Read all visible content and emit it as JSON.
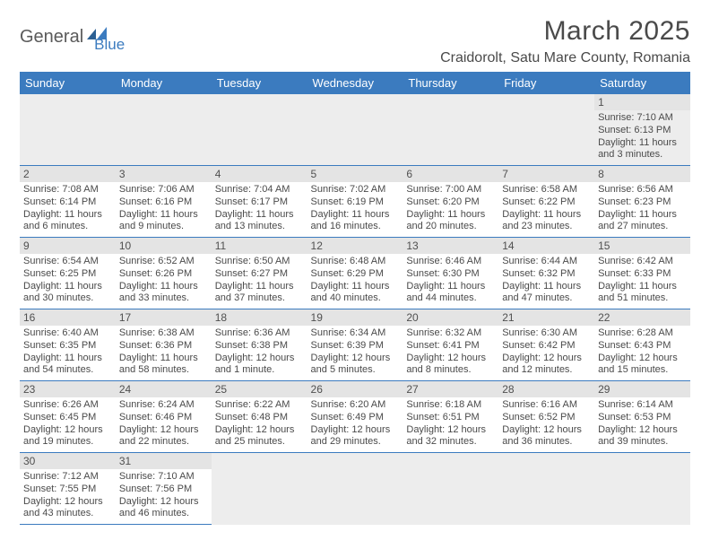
{
  "logo": {
    "part1": "General",
    "part2": "Blue"
  },
  "title": "March 2025",
  "location": "Craidorolt, Satu Mare County, Romania",
  "colors": {
    "header_bg": "#3b7bbf",
    "header_text": "#ffffff",
    "text": "#4a4a4a",
    "daynum_bg": "#e4e4e4",
    "border": "#3b7bbf"
  },
  "weekdays": [
    "Sunday",
    "Monday",
    "Tuesday",
    "Wednesday",
    "Thursday",
    "Friday",
    "Saturday"
  ],
  "weeks": [
    [
      null,
      null,
      null,
      null,
      null,
      null,
      {
        "n": "1",
        "sr": "Sunrise: 7:10 AM",
        "ss": "Sunset: 6:13 PM",
        "dl1": "Daylight: 11 hours",
        "dl2": "and 3 minutes."
      }
    ],
    [
      {
        "n": "2",
        "sr": "Sunrise: 7:08 AM",
        "ss": "Sunset: 6:14 PM",
        "dl1": "Daylight: 11 hours",
        "dl2": "and 6 minutes."
      },
      {
        "n": "3",
        "sr": "Sunrise: 7:06 AM",
        "ss": "Sunset: 6:16 PM",
        "dl1": "Daylight: 11 hours",
        "dl2": "and 9 minutes."
      },
      {
        "n": "4",
        "sr": "Sunrise: 7:04 AM",
        "ss": "Sunset: 6:17 PM",
        "dl1": "Daylight: 11 hours",
        "dl2": "and 13 minutes."
      },
      {
        "n": "5",
        "sr": "Sunrise: 7:02 AM",
        "ss": "Sunset: 6:19 PM",
        "dl1": "Daylight: 11 hours",
        "dl2": "and 16 minutes."
      },
      {
        "n": "6",
        "sr": "Sunrise: 7:00 AM",
        "ss": "Sunset: 6:20 PM",
        "dl1": "Daylight: 11 hours",
        "dl2": "and 20 minutes."
      },
      {
        "n": "7",
        "sr": "Sunrise: 6:58 AM",
        "ss": "Sunset: 6:22 PM",
        "dl1": "Daylight: 11 hours",
        "dl2": "and 23 minutes."
      },
      {
        "n": "8",
        "sr": "Sunrise: 6:56 AM",
        "ss": "Sunset: 6:23 PM",
        "dl1": "Daylight: 11 hours",
        "dl2": "and 27 minutes."
      }
    ],
    [
      {
        "n": "9",
        "sr": "Sunrise: 6:54 AM",
        "ss": "Sunset: 6:25 PM",
        "dl1": "Daylight: 11 hours",
        "dl2": "and 30 minutes."
      },
      {
        "n": "10",
        "sr": "Sunrise: 6:52 AM",
        "ss": "Sunset: 6:26 PM",
        "dl1": "Daylight: 11 hours",
        "dl2": "and 33 minutes."
      },
      {
        "n": "11",
        "sr": "Sunrise: 6:50 AM",
        "ss": "Sunset: 6:27 PM",
        "dl1": "Daylight: 11 hours",
        "dl2": "and 37 minutes."
      },
      {
        "n": "12",
        "sr": "Sunrise: 6:48 AM",
        "ss": "Sunset: 6:29 PM",
        "dl1": "Daylight: 11 hours",
        "dl2": "and 40 minutes."
      },
      {
        "n": "13",
        "sr": "Sunrise: 6:46 AM",
        "ss": "Sunset: 6:30 PM",
        "dl1": "Daylight: 11 hours",
        "dl2": "and 44 minutes."
      },
      {
        "n": "14",
        "sr": "Sunrise: 6:44 AM",
        "ss": "Sunset: 6:32 PM",
        "dl1": "Daylight: 11 hours",
        "dl2": "and 47 minutes."
      },
      {
        "n": "15",
        "sr": "Sunrise: 6:42 AM",
        "ss": "Sunset: 6:33 PM",
        "dl1": "Daylight: 11 hours",
        "dl2": "and 51 minutes."
      }
    ],
    [
      {
        "n": "16",
        "sr": "Sunrise: 6:40 AM",
        "ss": "Sunset: 6:35 PM",
        "dl1": "Daylight: 11 hours",
        "dl2": "and 54 minutes."
      },
      {
        "n": "17",
        "sr": "Sunrise: 6:38 AM",
        "ss": "Sunset: 6:36 PM",
        "dl1": "Daylight: 11 hours",
        "dl2": "and 58 minutes."
      },
      {
        "n": "18",
        "sr": "Sunrise: 6:36 AM",
        "ss": "Sunset: 6:38 PM",
        "dl1": "Daylight: 12 hours",
        "dl2": "and 1 minute."
      },
      {
        "n": "19",
        "sr": "Sunrise: 6:34 AM",
        "ss": "Sunset: 6:39 PM",
        "dl1": "Daylight: 12 hours",
        "dl2": "and 5 minutes."
      },
      {
        "n": "20",
        "sr": "Sunrise: 6:32 AM",
        "ss": "Sunset: 6:41 PM",
        "dl1": "Daylight: 12 hours",
        "dl2": "and 8 minutes."
      },
      {
        "n": "21",
        "sr": "Sunrise: 6:30 AM",
        "ss": "Sunset: 6:42 PM",
        "dl1": "Daylight: 12 hours",
        "dl2": "and 12 minutes."
      },
      {
        "n": "22",
        "sr": "Sunrise: 6:28 AM",
        "ss": "Sunset: 6:43 PM",
        "dl1": "Daylight: 12 hours",
        "dl2": "and 15 minutes."
      }
    ],
    [
      {
        "n": "23",
        "sr": "Sunrise: 6:26 AM",
        "ss": "Sunset: 6:45 PM",
        "dl1": "Daylight: 12 hours",
        "dl2": "and 19 minutes."
      },
      {
        "n": "24",
        "sr": "Sunrise: 6:24 AM",
        "ss": "Sunset: 6:46 PM",
        "dl1": "Daylight: 12 hours",
        "dl2": "and 22 minutes."
      },
      {
        "n": "25",
        "sr": "Sunrise: 6:22 AM",
        "ss": "Sunset: 6:48 PM",
        "dl1": "Daylight: 12 hours",
        "dl2": "and 25 minutes."
      },
      {
        "n": "26",
        "sr": "Sunrise: 6:20 AM",
        "ss": "Sunset: 6:49 PM",
        "dl1": "Daylight: 12 hours",
        "dl2": "and 29 minutes."
      },
      {
        "n": "27",
        "sr": "Sunrise: 6:18 AM",
        "ss": "Sunset: 6:51 PM",
        "dl1": "Daylight: 12 hours",
        "dl2": "and 32 minutes."
      },
      {
        "n": "28",
        "sr": "Sunrise: 6:16 AM",
        "ss": "Sunset: 6:52 PM",
        "dl1": "Daylight: 12 hours",
        "dl2": "and 36 minutes."
      },
      {
        "n": "29",
        "sr": "Sunrise: 6:14 AM",
        "ss": "Sunset: 6:53 PM",
        "dl1": "Daylight: 12 hours",
        "dl2": "and 39 minutes."
      }
    ],
    [
      {
        "n": "30",
        "sr": "Sunrise: 7:12 AM",
        "ss": "Sunset: 7:55 PM",
        "dl1": "Daylight: 12 hours",
        "dl2": "and 43 minutes."
      },
      {
        "n": "31",
        "sr": "Sunrise: 7:10 AM",
        "ss": "Sunset: 7:56 PM",
        "dl1": "Daylight: 12 hours",
        "dl2": "and 46 minutes."
      },
      null,
      null,
      null,
      null,
      null
    ]
  ]
}
